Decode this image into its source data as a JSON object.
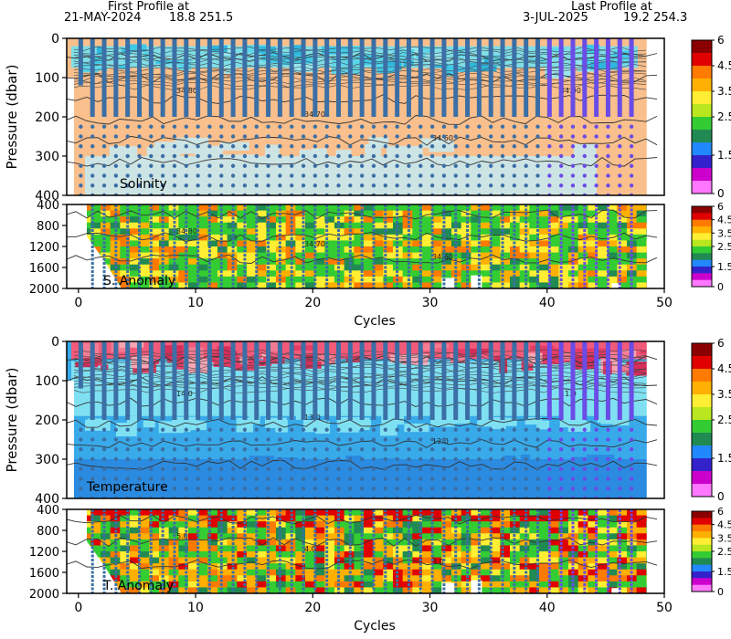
{
  "header": {
    "first_label": "First Profile at",
    "first_date": "21-MAY-2024",
    "first_coords": "18.8  251.5",
    "last_label": "Last Profile at",
    "last_date": "3-JUL-2025",
    "last_coords": "19.2  254.3"
  },
  "colorbar_ticks": [
    "6",
    "4.5",
    "3.5",
    "2.5",
    "1.5",
    "0"
  ],
  "colorbar_colors": [
    "#8b0000",
    "#e00000",
    "#ff7a00",
    "#ffb000",
    "#ffee33",
    "#b9e61e",
    "#33cc33",
    "#208a52",
    "#2288ff",
    "#3322cc",
    "#cc00cc",
    "#ff77ff"
  ],
  "chart_data": [
    {
      "type": "heatmap",
      "name": "Solinity",
      "ylabel": "Pressure (dbar)",
      "xlabel": "",
      "xlim": [
        -1,
        50
      ],
      "ylim": [
        400,
        0
      ],
      "yticks": [
        0,
        100,
        200,
        300,
        400
      ],
      "contour_labels": [
        "34.80",
        "34.70",
        "34.60",
        "34.90"
      ],
      "cycles": 48
    },
    {
      "type": "heatmap",
      "name": "S. Anomaly",
      "xlabel": "Cycles",
      "xlim": [
        -1,
        50
      ],
      "ylim": [
        2000,
        400
      ],
      "yticks": [
        400,
        800,
        1200,
        1600,
        2000
      ],
      "xticks": [
        0,
        10,
        20,
        30,
        40,
        50
      ],
      "contour_labels": [
        "34.80",
        "34.70",
        "34.60"
      ]
    },
    {
      "type": "heatmap",
      "name": "Temperature",
      "ylabel": "Pressure (dbar)",
      "xlim": [
        -1,
        50
      ],
      "ylim": [
        400,
        0
      ],
      "yticks": [
        0,
        100,
        200,
        300,
        400
      ],
      "contour_labels": [
        "14.0",
        "13.0",
        "12.0",
        "11.0",
        "10.0"
      ]
    },
    {
      "type": "heatmap",
      "name": "T. Anomaly",
      "xlabel": "Cycles",
      "xlim": [
        -1,
        50
      ],
      "ylim": [
        2000,
        400
      ],
      "yticks": [
        400,
        800,
        1200,
        1600,
        2000
      ],
      "xticks": [
        0,
        10,
        20,
        30,
        40,
        50
      ],
      "contour_labels": [
        "5.0",
        "4.0",
        "3.0"
      ]
    }
  ]
}
